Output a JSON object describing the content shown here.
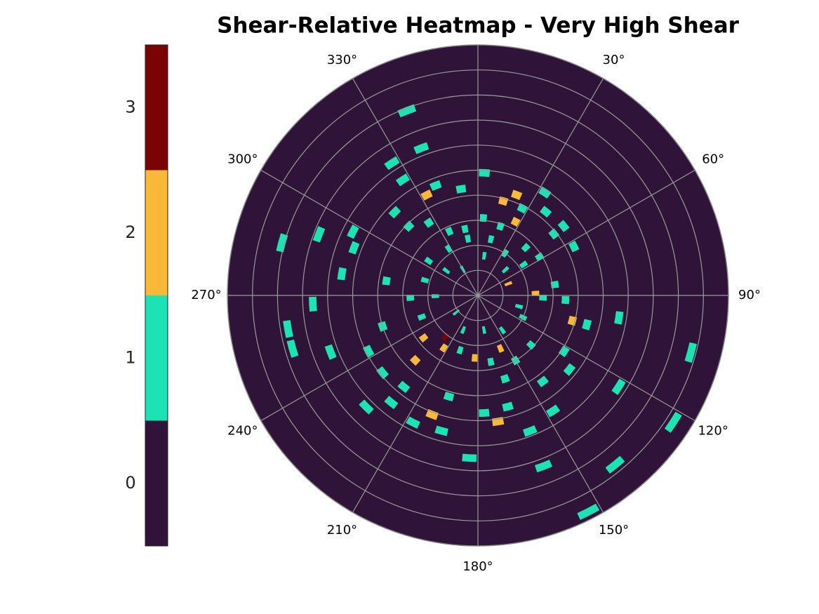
{
  "chart_data": {
    "type": "polar_heatmap",
    "title": "Shear-Relative Heatmap - Very High Shear",
    "theta_direction": "clockwise",
    "theta_zero": "north",
    "rlim": [
      0,
      10
    ],
    "rticks": [
      1,
      2,
      3,
      4,
      5,
      6,
      7,
      8,
      9
    ],
    "thetaticks": [
      {
        "value": 0,
        "label": null
      },
      {
        "value": 30,
        "label": "30°"
      },
      {
        "value": 60,
        "label": "60°"
      },
      {
        "value": 90,
        "label": "90°"
      },
      {
        "value": 120,
        "label": "120°"
      },
      {
        "value": 150,
        "label": "150°"
      },
      {
        "value": 180,
        "label": "180°"
      },
      {
        "value": 210,
        "label": "210°"
      },
      {
        "value": 240,
        "label": "240°"
      },
      {
        "value": 270,
        "label": "270°"
      },
      {
        "value": 300,
        "label": "300°"
      },
      {
        "value": 330,
        "label": "330°"
      }
    ],
    "grid": true,
    "background_value": 0,
    "theta": [
      339,
      339,
      327,
      327,
      333,
      339,
      351,
      3,
      21,
      15,
      33,
      27,
      39,
      27,
      18,
      51,
      63,
      51,
      4,
      349,
      336,
      326,
      315,
      315,
      297,
      291,
      285,
      291,
      279,
      279,
      267,
      260,
      254,
      249,
      243,
      252,
      231,
      219,
      219,
      207,
      195,
      201,
      196,
      183,
      177,
      171,
      165,
      162,
      159,
      159,
      153,
      141,
      123,
      105,
      99,
      105,
      105,
      123,
      129,
      143,
      147,
      123,
      133,
      150,
      157,
      169,
      183,
      198,
      213,
      218,
      232,
      224,
      249,
      268,
      286,
      305,
      328,
      350,
      13,
      33,
      45,
      58,
      82,
      88,
      92,
      93,
      116,
      47,
      69,
      9,
      330,
      308,
      269,
      232,
      203,
      170,
      145,
      105,
      225,
      56
    ],
    "r": [
      7.9,
      6.3,
      6.3,
      5.5,
      4.5,
      4.7,
      4.3,
      4.9,
      4.3,
      3.9,
      4.9,
      3.9,
      4.3,
      3.3,
      2.9,
      4.4,
      4.3,
      3.9,
      3.1,
      2.7,
      2.8,
      3.5,
      3.9,
      4.7,
      5.6,
      6.8,
      8.1,
      5.3,
      5.5,
      3.7,
      6.6,
      7.7,
      7.7,
      6.3,
      4.9,
      4.0,
      4.9,
      4.7,
      5.5,
      5.7,
      5.6,
      5.1,
      4.2,
      6.5,
      4.7,
      5.1,
      4.6,
      3.5,
      5.8,
      7.3,
      9.7,
      8.7,
      9.3,
      8.8,
      5.7,
      4.5,
      3.9,
      4.1,
      4.7,
      4.3,
      5.5,
      6.7,
      2.9,
      3.0,
      2.3,
      2.7,
      2.5,
      2.3,
      2.5,
      2.1,
      2.75,
      3.6,
      2.4,
      2.7,
      2.2,
      2.4,
      2.2,
      2.3,
      2.3,
      2.0,
      2.7,
      2.9,
      3.1,
      2.3,
      2.6,
      3.5,
      2.0,
      1.5,
      1.3,
      1.6,
      1.2,
      1.6,
      1.7,
      1.1,
      1.5,
      1.4,
      1.7,
      1.7,
      6.3,
      2.2
    ],
    "values": [
      1,
      1,
      1,
      1,
      2,
      1,
      1,
      1,
      2,
      2,
      1,
      1,
      1,
      2,
      1,
      1,
      1,
      1,
      1,
      1,
      1,
      1,
      1,
      1,
      1,
      1,
      1,
      1,
      1,
      1,
      1,
      1,
      1,
      1,
      1,
      1,
      1,
      1,
      1,
      1,
      1,
      2,
      1,
      1,
      1,
      2,
      1,
      1,
      1,
      1,
      1,
      1,
      1,
      1,
      1,
      1,
      2,
      1,
      1,
      1,
      1,
      1,
      1,
      1,
      2,
      1,
      2,
      1,
      2,
      3,
      2,
      2,
      1,
      1,
      1,
      1,
      1,
      1,
      1,
      1,
      1,
      1,
      1,
      2,
      1,
      1,
      1,
      1,
      2,
      1,
      1,
      1,
      1,
      1,
      1,
      1,
      1,
      1,
      1,
      1
    ],
    "colorbar": {
      "levels": [
        0,
        1,
        2,
        3
      ],
      "colors": [
        "#2f1339",
        "#1de2b4",
        "#f9b938",
        "#7a0403"
      ],
      "lim": [
        -0.5,
        3.5
      ],
      "ticks": [
        0,
        1,
        2,
        3
      ]
    }
  }
}
